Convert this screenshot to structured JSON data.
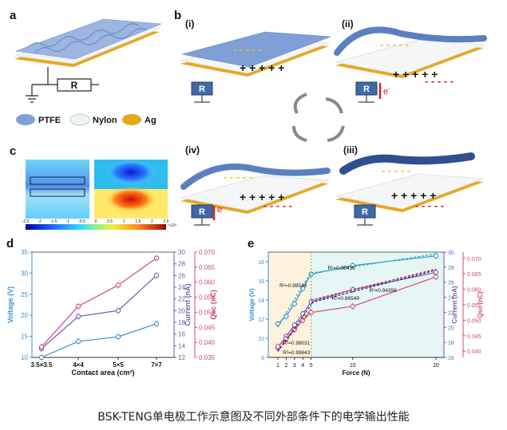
{
  "caption": "BSK-TENG单电极工作示意图及不同外部条件下的电学输出性能",
  "panels": {
    "a": {
      "label": "a",
      "resistor": "R",
      "legend": [
        {
          "text": "PTFE",
          "color": "#7f9fd6"
        },
        {
          "text": "Nylon",
          "color": "#eef4f6"
        },
        {
          "text": "Ag",
          "color": "#e8a81c"
        }
      ]
    },
    "b": {
      "label": "b",
      "states": [
        "(i)",
        "(ii)",
        "(iii)",
        "(iv)"
      ],
      "resistor": "R",
      "electron": "e",
      "electron_sup": "-"
    },
    "c": {
      "label": "c",
      "colorbar_ticks": [
        "-2.5",
        "-2",
        "-1.5",
        "-1",
        "-0.5",
        "0",
        "0.5",
        "1",
        "1.5",
        "2",
        "2.5"
      ],
      "colorbar_exp": "×10⁷"
    },
    "d": {
      "label": "d"
    },
    "e": {
      "label": "e"
    }
  },
  "colors": {
    "voltage": "#3b8fd0",
    "current": "#6b5bb0",
    "qsc": "#d0477c",
    "fit_voltage": "#1fb7c9",
    "fit_current": "#2e2ba8",
    "fit_qsc": "#d62b3a",
    "ptfe": "#7f9fd6",
    "ag": "#e8a81c"
  },
  "chart_data": [
    {
      "id": "d",
      "type": "line",
      "categories": [
        "3.5×3.5",
        "4×4",
        "5×5",
        "7×7"
      ],
      "xlabel": "Contact area (cm²)",
      "axes": {
        "left": {
          "label": "Voltage (V)",
          "ylim": [
            10,
            35
          ],
          "ticks": [
            10,
            15,
            20,
            25,
            30,
            35
          ]
        },
        "right1": {
          "label": "Current (nA)",
          "ylim": [
            12,
            30
          ],
          "ticks": [
            12,
            14,
            16,
            18,
            20,
            22,
            24,
            26,
            28,
            30
          ]
        },
        "right2": {
          "label": "Qsc (nC)",
          "ylim": [
            0.035,
            0.07
          ],
          "ticks": [
            0.035,
            0.04,
            0.045,
            0.05,
            0.055,
            0.06,
            0.065,
            0.07
          ]
        }
      },
      "series": [
        {
          "key": "voltage",
          "axis": "left",
          "values": [
            10.0,
            13.8,
            14.9,
            18.0
          ]
        },
        {
          "key": "current",
          "axis": "right1",
          "values": [
            13.5,
            19.0,
            20.0,
            26.0
          ]
        },
        {
          "key": "qsc",
          "axis": "right2",
          "values": [
            0.0385,
            0.052,
            0.059,
            0.068
          ]
        }
      ]
    },
    {
      "id": "e",
      "type": "line",
      "x": [
        1,
        2,
        3,
        4,
        5,
        10,
        20
      ],
      "xticks": [
        1,
        2,
        3,
        4,
        5,
        10,
        20
      ],
      "xlabel": "Force (N)",
      "axes": {
        "left": {
          "label": "Voltage (V)",
          "ylim": [
            8,
            19
          ],
          "ticks": [
            8,
            10,
            12,
            14,
            16,
            18
          ]
        },
        "right1": {
          "label": "Current (nA)",
          "ylim": [
            16,
            30
          ],
          "ticks": [
            16,
            18,
            20,
            22,
            24,
            26,
            28,
            30
          ]
        },
        "right2": {
          "label": "Qsc (nC)",
          "ylim": [
            0.038,
            0.072
          ],
          "ticks": [
            0.04,
            0.045,
            0.05,
            0.055,
            0.06,
            0.065,
            0.07
          ]
        }
      },
      "series": [
        {
          "key": "voltage",
          "axis": "left",
          "values": [
            11.5,
            12.3,
            13.6,
            15.2,
            16.7,
            17.6,
            18.6
          ]
        },
        {
          "key": "current",
          "axis": "right1",
          "values": [
            17.3,
            18.8,
            20.3,
            21.8,
            23.4,
            25.0,
            27.3
          ]
        },
        {
          "key": "qsc",
          "axis": "right2",
          "values": [
            0.0415,
            0.044,
            0.047,
            0.05,
            0.0525,
            0.0545,
            0.064
          ]
        }
      ],
      "annotations": [
        "R²=0.95435",
        "R²=0.98543",
        "R²=0.94356",
        "R²=0.86549",
        "R²=0.99031",
        "R²=0.99843"
      ]
    }
  ]
}
